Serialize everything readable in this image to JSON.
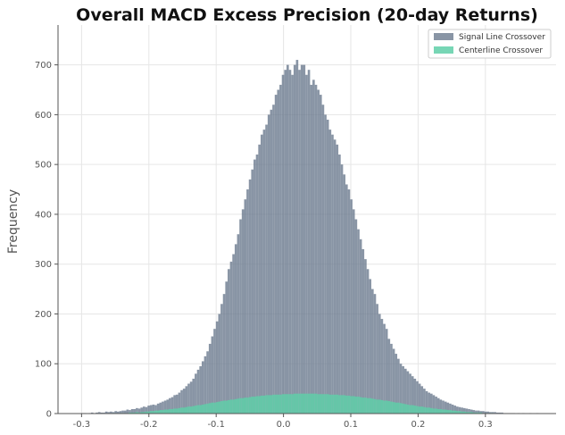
{
  "chart_data": {
    "type": "bar",
    "title": "Overall MACD Excess Precision (20-day Returns)",
    "xlabel": "",
    "ylabel": "Frequency",
    "xlim": [
      -0.335,
      0.405
    ],
    "ylim": [
      0,
      780
    ],
    "xticks": [
      -0.3,
      -0.2,
      -0.1,
      0.0,
      0.1,
      0.2,
      0.3
    ],
    "xtick_labels": [
      "-0.3",
      "-0.2",
      "-0.1",
      "0.0",
      "0.1",
      "0.2",
      "0.3"
    ],
    "yticks": [
      0,
      100,
      200,
      300,
      400,
      500,
      600,
      700
    ],
    "ytick_labels": [
      "0",
      "100",
      "200",
      "300",
      "400",
      "500",
      "600",
      "700"
    ],
    "grid": true,
    "legend_position": "top-right",
    "bin_start": -0.3,
    "bin_width": 0.0035,
    "series": [
      {
        "name": "Signal Line Crossover",
        "color": "#6b7b8f",
        "opacity": 0.8,
        "values": [
          1,
          1,
          0,
          1,
          2,
          1,
          2,
          3,
          2,
          2,
          4,
          3,
          4,
          3,
          5,
          4,
          5,
          6,
          6,
          8,
          7,
          9,
          9,
          11,
          10,
          12,
          14,
          13,
          16,
          17,
          18,
          17,
          20,
          22,
          24,
          26,
          28,
          31,
          33,
          37,
          38,
          42,
          47,
          50,
          55,
          60,
          64,
          70,
          80,
          88,
          95,
          105,
          115,
          125,
          140,
          155,
          170,
          185,
          200,
          220,
          240,
          265,
          290,
          305,
          320,
          340,
          360,
          390,
          410,
          430,
          450,
          470,
          490,
          510,
          520,
          540,
          560,
          570,
          580,
          600,
          610,
          620,
          640,
          650,
          660,
          680,
          690,
          700,
          690,
          680,
          700,
          710,
          690,
          700,
          700,
          680,
          690,
          660,
          670,
          660,
          650,
          640,
          620,
          600,
          590,
          570,
          560,
          550,
          540,
          520,
          500,
          480,
          460,
          450,
          430,
          410,
          390,
          370,
          350,
          330,
          310,
          290,
          270,
          250,
          240,
          220,
          200,
          190,
          180,
          170,
          150,
          140,
          130,
          120,
          110,
          100,
          95,
          90,
          85,
          80,
          75,
          70,
          65,
          60,
          55,
          50,
          45,
          42,
          40,
          37,
          34,
          31,
          28,
          26,
          24,
          22,
          20,
          18,
          16,
          14,
          13,
          12,
          11,
          10,
          9,
          8,
          7,
          6,
          6,
          5,
          5,
          4,
          4,
          3,
          3,
          3,
          2,
          2,
          2,
          1,
          1,
          1,
          1,
          1,
          0,
          1,
          0,
          1,
          0,
          0,
          1,
          0,
          0,
          1
        ]
      },
      {
        "name": "Centerline Crossover",
        "color": "#5fcfa8",
        "opacity": 0.85,
        "values": [
          0,
          0,
          0,
          0,
          0,
          0,
          0,
          0,
          0,
          0,
          0,
          0,
          0,
          1,
          1,
          0,
          1,
          1,
          1,
          1,
          2,
          2,
          2,
          3,
          2,
          3,
          3,
          4,
          4,
          5,
          5,
          6,
          6,
          7,
          7,
          8,
          8,
          9,
          9,
          10,
          10,
          11,
          12,
          12,
          13,
          14,
          14,
          15,
          16,
          17,
          17,
          18,
          19,
          20,
          21,
          22,
          22,
          23,
          24,
          25,
          26,
          26,
          27,
          28,
          28,
          29,
          30,
          31,
          31,
          32,
          32,
          33,
          34,
          34,
          35,
          35,
          36,
          36,
          37,
          37,
          37,
          38,
          38,
          38,
          38,
          39,
          39,
          39,
          39,
          39,
          40,
          40,
          40,
          40,
          40,
          40,
          40,
          40,
          40,
          40,
          39,
          39,
          39,
          39,
          39,
          38,
          38,
          38,
          38,
          37,
          37,
          37,
          36,
          36,
          35,
          35,
          34,
          34,
          33,
          32,
          32,
          31,
          31,
          30,
          29,
          28,
          28,
          27,
          26,
          26,
          25,
          24,
          23,
          22,
          22,
          21,
          20,
          19,
          18,
          17,
          17,
          16,
          15,
          14,
          14,
          13,
          12,
          12,
          11,
          10,
          10,
          9,
          9,
          8,
          8,
          7,
          7,
          6,
          6,
          5,
          5,
          4,
          4,
          3,
          3,
          3,
          2,
          2,
          2,
          2,
          1,
          1,
          1,
          1,
          1,
          0,
          0,
          0,
          0,
          0,
          0,
          0,
          0,
          0,
          0,
          0,
          0,
          0,
          0,
          0,
          0,
          0,
          0,
          0
        ]
      }
    ]
  }
}
